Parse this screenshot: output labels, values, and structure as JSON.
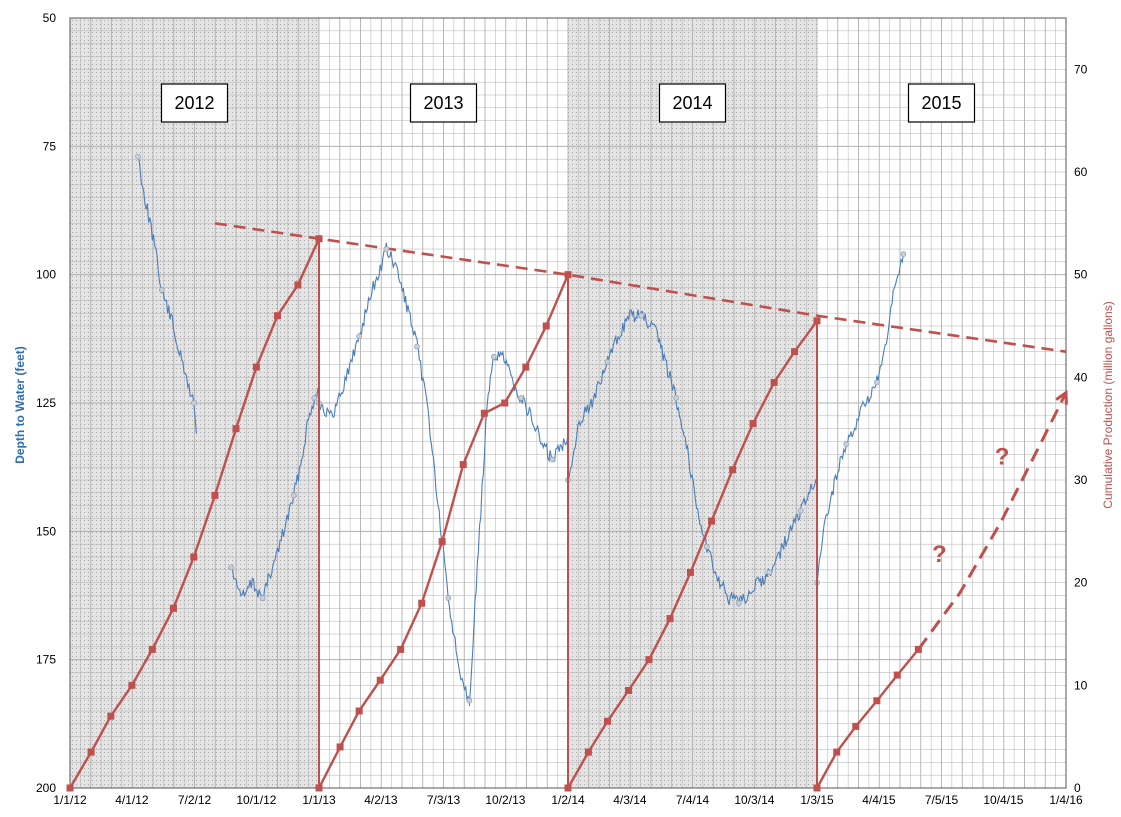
{
  "chart_data": {
    "type": "line",
    "title": "",
    "xlabel": "",
    "ylabel_left": "Depth to Water (feet)",
    "ylabel_right": "Cumulative Production (million gallons)",
    "x_tick_labels": [
      "1/1/12",
      "4/1/12",
      "7/2/12",
      "10/1/12",
      "1/1/13",
      "4/2/13",
      "7/3/13",
      "10/2/13",
      "1/2/14",
      "4/3/14",
      "7/4/14",
      "10/3/14",
      "1/3/15",
      "4/4/15",
      "7/5/15",
      "10/4/15",
      "1/4/16"
    ],
    "xlim": [
      "1/1/12",
      "1/4/16"
    ],
    "ylim_left": [
      50,
      200
    ],
    "y_left_inverted": true,
    "y_left_ticks": [
      50,
      75,
      100,
      125,
      150,
      175,
      200
    ],
    "ylim_right": [
      0,
      75
    ],
    "y_right_ticks": [
      0,
      10,
      20,
      30,
      40,
      50,
      60,
      70
    ],
    "grid": true,
    "shaded_periods": [
      {
        "start": "1/1/12",
        "end": "1/1/13"
      },
      {
        "start": "1/2/14",
        "end": "1/3/15"
      }
    ],
    "year_labels": [
      {
        "text": "2012",
        "date": "7/2/12"
      },
      {
        "text": "2013",
        "date": "7/3/13"
      },
      {
        "text": "2014",
        "date": "7/4/14"
      },
      {
        "text": "2015",
        "date": "7/5/15"
      }
    ],
    "annotations": [
      "?",
      "?"
    ],
    "colors": {
      "depth": "#4a7ebb",
      "production": "#c0504d",
      "trend": "#c0504d",
      "shade": "#d6d6d6",
      "grid": "#b0b0b0"
    },
    "series": [
      {
        "axis": "left",
        "style": "blue noisy line",
        "segments": [
          [
            [
              "4/10/12",
              77
            ],
            [
              "4/20/12",
              85
            ],
            [
              "5/1/12",
              92
            ],
            [
              "5/15/12",
              103
            ],
            [
              "6/1/12",
              110
            ],
            [
              "6/15/12",
              118
            ],
            [
              "7/1/12",
              125
            ],
            [
              "7/5/12",
              131
            ]
          ],
          [
            [
              "8/25/12",
              157
            ],
            [
              "9/10/12",
              163
            ],
            [
              "9/25/12",
              160
            ],
            [
              "10/10/12",
              163
            ],
            [
              "10/25/12",
              157
            ],
            [
              "11/10/12",
              150
            ],
            [
              "11/25/12",
              143
            ],
            [
              "12/5/12",
              137
            ],
            [
              "12/15/12",
              129
            ],
            [
              "12/25/12",
              124
            ],
            [
              "1/1/13",
              122
            ]
          ],
          [
            [
              "1/1/13",
              125
            ],
            [
              "1/20/13",
              128
            ],
            [
              "2/10/13",
              120
            ],
            [
              "3/1/13",
              112
            ],
            [
              "3/20/13",
              103
            ],
            [
              "4/1/13",
              99
            ],
            [
              "4/10/13",
              95
            ],
            [
              "4/25/13",
              99
            ],
            [
              "5/10/13",
              106
            ],
            [
              "5/25/13",
              114
            ],
            [
              "6/10/13",
              126
            ],
            [
              "6/25/13",
              145
            ],
            [
              "7/10/13",
              163
            ],
            [
              "7/25/13",
              176
            ],
            [
              "8/10/13",
              183
            ]
          ],
          [
            [
              "8/10/13",
              183
            ],
            [
              "8/25/13",
              150
            ],
            [
              "9/5/13",
              126
            ],
            [
              "9/15/13",
              116
            ],
            [
              "9/25/13",
              115
            ],
            [
              "10/10/13",
              120
            ],
            [
              "10/25/13",
              124
            ],
            [
              "11/10/13",
              128
            ],
            [
              "11/25/13",
              133
            ],
            [
              "12/10/13",
              136
            ],
            [
              "12/25/13",
              133
            ],
            [
              "1/2/14",
              131
            ]
          ],
          [
            [
              "1/2/14",
              140
            ],
            [
              "1/20/14",
              128
            ],
            [
              "2/10/14",
              124
            ],
            [
              "3/1/14",
              117
            ],
            [
              "3/20/14",
              111
            ],
            [
              "4/3/14",
              108
            ],
            [
              "4/20/14",
              108
            ],
            [
              "5/10/14",
              111
            ],
            [
              "5/25/14",
              117
            ],
            [
              "6/10/14",
              124
            ],
            [
              "6/25/14",
              133
            ],
            [
              "7/10/14",
              145
            ],
            [
              "7/25/14",
              153
            ],
            [
              "8/10/14",
              159
            ],
            [
              "8/25/14",
              163
            ],
            [
              "9/10/14",
              164
            ],
            [
              "9/25/14",
              162
            ],
            [
              "10/10/14",
              160
            ],
            [
              "10/25/14",
              158
            ],
            [
              "11/10/14",
              154
            ],
            [
              "11/25/14",
              150
            ],
            [
              "12/10/14",
              146
            ],
            [
              "12/25/14",
              142
            ],
            [
              "1/3/15",
              141
            ]
          ],
          [
            [
              "1/3/15",
              160
            ],
            [
              "1/15/15",
              148
            ],
            [
              "1/30/15",
              140
            ],
            [
              "2/15/15",
              133
            ],
            [
              "3/1/15",
              129
            ],
            [
              "3/15/15",
              125
            ],
            [
              "4/1/15",
              121
            ],
            [
              "4/15/15",
              114
            ],
            [
              "4/25/15",
              104
            ],
            [
              "5/10/15",
              96
            ]
          ]
        ]
      },
      {
        "axis": "right",
        "style": "red line with square markers (cumulative, resets each year)",
        "segments": [
          [
            [
              "1/1/12",
              0
            ],
            [
              "2/1/12",
              3.5
            ],
            [
              "3/1/12",
              7
            ],
            [
              "4/1/12",
              10
            ],
            [
              "5/1/12",
              13.5
            ],
            [
              "6/1/12",
              17.5
            ],
            [
              "7/1/12",
              22.5
            ],
            [
              "8/1/12",
              28.5
            ],
            [
              "9/1/12",
              35
            ],
            [
              "10/1/12",
              41
            ],
            [
              "11/1/12",
              46
            ],
            [
              "12/1/12",
              49
            ],
            [
              "1/1/13",
              53.5
            ]
          ],
          [
            [
              "1/1/13",
              0
            ],
            [
              "2/1/13",
              4
            ],
            [
              "3/1/13",
              7.5
            ],
            [
              "4/1/13",
              10.5
            ],
            [
              "5/1/13",
              13.5
            ],
            [
              "6/1/13",
              18
            ],
            [
              "7/1/13",
              24
            ],
            [
              "8/1/13",
              31.5
            ],
            [
              "9/1/13",
              36.5
            ],
            [
              "10/1/13",
              37.5
            ],
            [
              "11/1/13",
              41
            ],
            [
              "12/1/13",
              45
            ],
            [
              "1/2/14",
              50
            ]
          ],
          [
            [
              "1/2/14",
              0
            ],
            [
              "2/1/14",
              3.5
            ],
            [
              "3/1/14",
              6.5
            ],
            [
              "4/1/14",
              9.5
            ],
            [
              "5/1/14",
              12.5
            ],
            [
              "6/1/14",
              16.5
            ],
            [
              "7/1/14",
              21
            ],
            [
              "8/1/14",
              26
            ],
            [
              "9/1/14",
              31
            ],
            [
              "10/1/14",
              35.5
            ],
            [
              "11/1/14",
              39.5
            ],
            [
              "12/1/14",
              42.5
            ],
            [
              "1/3/15",
              45.5
            ]
          ],
          [
            [
              "1/3/15",
              0
            ],
            [
              "2/1/15",
              3.5
            ],
            [
              "3/1/15",
              6
            ],
            [
              "4/1/15",
              8.5
            ],
            [
              "5/1/15",
              11
            ],
            [
              "6/1/15",
              13.5
            ]
          ]
        ]
      },
      {
        "axis": "right",
        "style": "red dashed projection",
        "segments": [
          [
            [
              "6/1/15",
              13.5
            ],
            [
              "8/1/15",
              19
            ],
            [
              "10/1/15",
              26
            ],
            [
              "12/1/15",
              34
            ],
            [
              "1/4/16",
              38.5
            ]
          ]
        ]
      },
      {
        "axis": "left",
        "style": "red dashed trend line",
        "segments": [
          [
            [
              "8/1/12",
              90
            ],
            [
              "1/1/13",
              93
            ],
            [
              "1/2/14",
              100
            ],
            [
              "1/3/15",
              108
            ],
            [
              "1/4/16",
              115
            ]
          ]
        ]
      }
    ]
  }
}
